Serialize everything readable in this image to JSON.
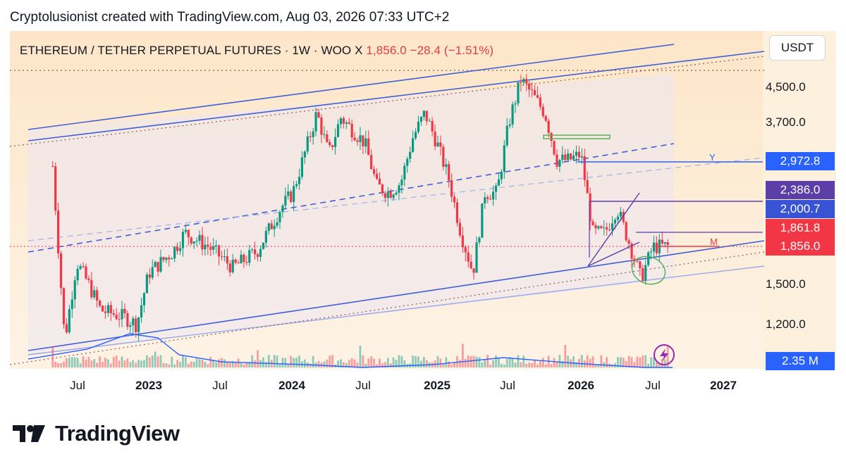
{
  "header": {
    "attribution": "Cryptolusionist created with TradingView.com, Aug 03, 2026 07:33 UTC+2"
  },
  "legend": {
    "symbol": "ETHEREUM / TETHER PERPETUAL FUTURES · 1W · WOO X",
    "last": "1,856.0",
    "change": "−28.4 (−1.51%)"
  },
  "unit": "USDT",
  "brand": {
    "name": "TradingView"
  },
  "colors": {
    "up": "#089981",
    "down": "#f23645",
    "trendline": "#3f5fd6",
    "channel_fill": "#ece6f2",
    "background_top": "#fde9cf",
    "background_bottom": "#fdf3e6"
  },
  "chart_data": {
    "type": "candlestick",
    "timeframe": "1W",
    "y_scale": "log",
    "y_ticks": [
      "4,500.0",
      "3,700.0",
      "1,500.0",
      "1,200.0"
    ],
    "x_ticks": [
      {
        "label": "Jul",
        "year": false
      },
      {
        "label": "2023",
        "year": true
      },
      {
        "label": "Jul",
        "year": false
      },
      {
        "label": "2024",
        "year": true
      },
      {
        "label": "Jul",
        "year": false
      },
      {
        "label": "2025",
        "year": true
      },
      {
        "label": "Jul",
        "year": false
      },
      {
        "label": "2026",
        "year": true
      },
      {
        "label": "Jul",
        "year": false
      },
      {
        "label": "2027",
        "year": true
      }
    ],
    "price_labels": [
      {
        "value": "2,972.8",
        "color": "#2962ff"
      },
      {
        "value": "2,386.0",
        "color": "#5b3ea8"
      },
      {
        "value": "2,000.7",
        "color": "#2962ff"
      },
      {
        "value": "1,861.8",
        "color": "#f23645"
      },
      {
        "value": "1,856.0",
        "color": "#f23645"
      },
      {
        "value": "2.35 M",
        "color": "#2962ff"
      }
    ],
    "annotations": [
      "Y",
      "M"
    ],
    "price_path": [
      [
        "2022-05",
        2900
      ],
      [
        "2022-06",
        1100
      ],
      [
        "2022-07",
        1700
      ],
      [
        "2022-08",
        1500
      ],
      [
        "2022-09",
        1300
      ],
      [
        "2022-11",
        1250
      ],
      [
        "2022-12",
        1200
      ],
      [
        "2023-01",
        1600
      ],
      [
        "2023-03",
        1800
      ],
      [
        "2023-04",
        2000
      ],
      [
        "2023-06",
        1850
      ],
      [
        "2023-08",
        1650
      ],
      [
        "2023-10",
        1800
      ],
      [
        "2023-12",
        2300
      ],
      [
        "2024-01",
        2500
      ],
      [
        "2024-03",
        3900
      ],
      [
        "2024-04",
        3100
      ],
      [
        "2024-05",
        3800
      ],
      [
        "2024-07",
        3300
      ],
      [
        "2024-08",
        2600
      ],
      [
        "2024-09",
        2500
      ],
      [
        "2024-10",
        2650
      ],
      [
        "2024-11",
        3400
      ],
      [
        "2024-12",
        3900
      ],
      [
        "2025-01",
        3300
      ],
      [
        "2025-02",
        2700
      ],
      [
        "2025-03",
        2000
      ],
      [
        "2025-04",
        1600
      ],
      [
        "2025-05",
        2500
      ],
      [
        "2025-06",
        2500
      ],
      [
        "2025-07",
        3700
      ],
      [
        "2025-08",
        4700
      ],
      [
        "2025-09",
        4300
      ],
      [
        "2025-10",
        3900
      ],
      [
        "2025-11",
        3000
      ],
      [
        "2025-12",
        3000
      ],
      [
        "2026-01",
        3100
      ],
      [
        "2026-02",
        2000
      ],
      [
        "2026-03",
        2000
      ],
      [
        "2026-04",
        2300
      ],
      [
        "2026-05",
        1900
      ],
      [
        "2026-06",
        1550
      ],
      [
        "2026-07",
        1850
      ],
      [
        "2026-08",
        1856
      ]
    ]
  }
}
